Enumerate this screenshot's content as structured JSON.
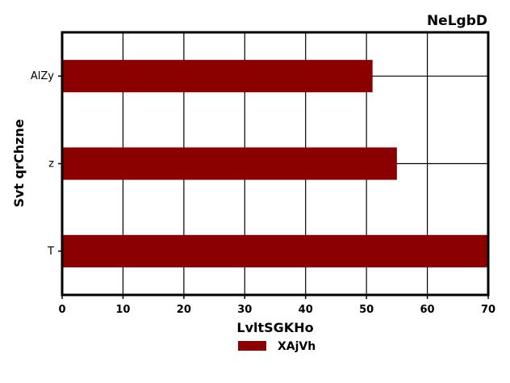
{
  "chart_data": {
    "type": "bar",
    "orientation": "horizontal",
    "title": "NeLgbD",
    "xlabel": "LvltSGKHo",
    "ylabel": "Svt qrChzne",
    "categories": [
      "AlZy",
      "z",
      "T"
    ],
    "series": [
      {
        "name": "XAjVh",
        "values": [
          51,
          55,
          70
        ],
        "color": "#8b0000"
      }
    ],
    "xlim": [
      0,
      70
    ],
    "xticks": [
      0,
      10,
      20,
      30,
      40,
      50,
      60,
      70
    ],
    "grid": true,
    "legend": "bottom-center"
  }
}
